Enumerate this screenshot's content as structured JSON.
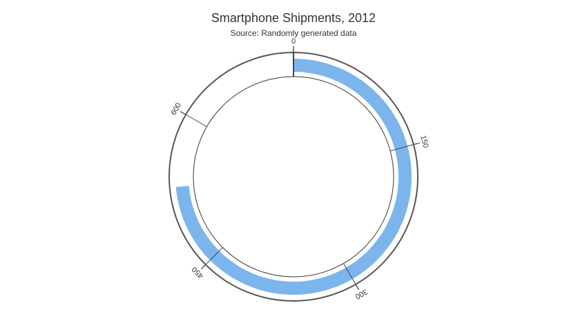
{
  "chart_data": {
    "type": "radial-bar",
    "title": "Smartphone Shipments, 2012",
    "subtitle": "Source: Randomly generated data",
    "axis": {
      "min": 0,
      "max": 720,
      "ticks": [
        0,
        150,
        300,
        450,
        600
      ],
      "tick_labels": [
        "0",
        "150",
        "300",
        "450",
        "600"
      ]
    },
    "series": [
      {
        "values": [
          530
        ]
      }
    ],
    "grid": true,
    "legend": "none"
  },
  "colors": {
    "bar": "#7cb5ec",
    "outer_axis": "#555555",
    "inner_circle": "#333333",
    "grid": "#444444",
    "text": "#333333"
  }
}
